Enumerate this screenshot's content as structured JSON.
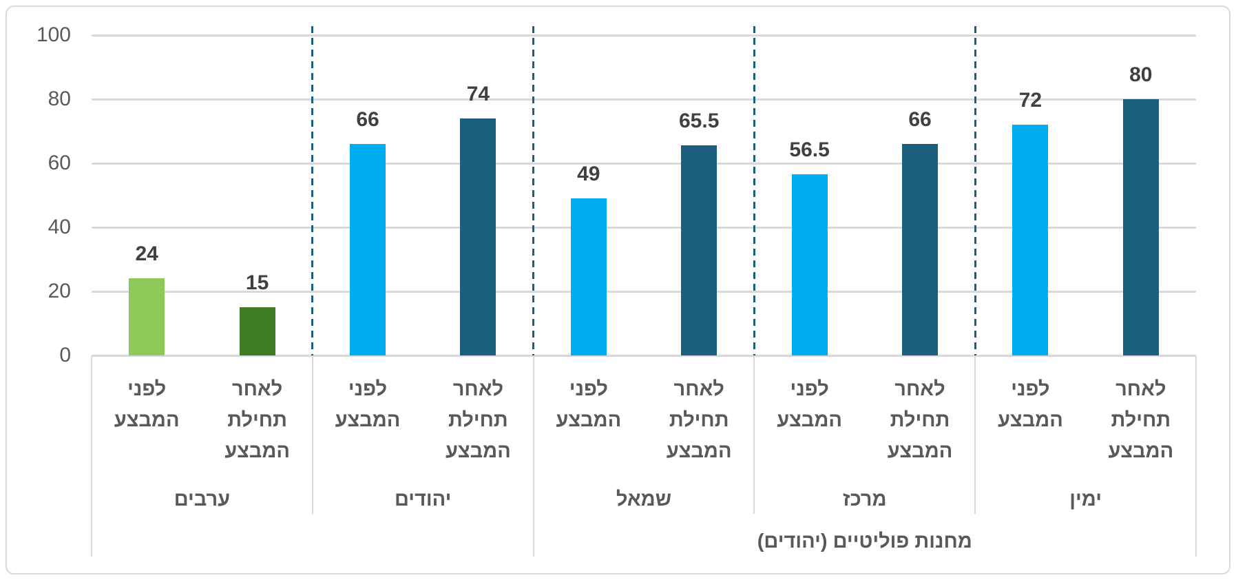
{
  "chart_data": {
    "type": "bar",
    "title": "",
    "xlabel": "",
    "ylabel": "",
    "ylim": [
      0,
      100
    ],
    "yticks": [
      0,
      20,
      40,
      60,
      80,
      100
    ],
    "ytick_labels": [
      "0",
      "20",
      "40",
      "60",
      "80",
      "100"
    ],
    "grid": true,
    "legend": "none",
    "group_order": "left-to-right",
    "groups": [
      {
        "group": "ערבים",
        "bars": [
          {
            "label": "לפני המבצע",
            "label_lines": [
              "לפני",
              "המבצע"
            ],
            "value": 24,
            "value_label": "24",
            "color": "#8DC956"
          },
          {
            "label": "לאחר תחילת המבצע",
            "label_lines": [
              "לאחר",
              "תחילת",
              "המבצע"
            ],
            "value": 15,
            "value_label": "15",
            "color": "#3E7D24"
          }
        ]
      },
      {
        "group": "יהודים",
        "bars": [
          {
            "label": "לפני המבצע",
            "label_lines": [
              "לפני",
              "המבצע"
            ],
            "value": 66,
            "value_label": "66",
            "color": "#00AEEF"
          },
          {
            "label": "לאחר תחילת המבצע",
            "label_lines": [
              "לאחר",
              "תחילת",
              "המבצע"
            ],
            "value": 74,
            "value_label": "74",
            "color": "#1B5E7D"
          }
        ]
      },
      {
        "group": "שמאל",
        "bars": [
          {
            "label": "לפני המבצע",
            "label_lines": [
              "לפני",
              "המבצע"
            ],
            "value": 49,
            "value_label": "49",
            "color": "#00AEEF"
          },
          {
            "label": "לאחר תחילת המבצע",
            "label_lines": [
              "לאחר",
              "תחילת",
              "המבצע"
            ],
            "value": 65.5,
            "value_label": "65.5",
            "color": "#1B5E7D"
          }
        ]
      },
      {
        "group": "מרכז",
        "bars": [
          {
            "label": "לפני המבצע",
            "label_lines": [
              "לפני",
              "המבצע"
            ],
            "value": 56.5,
            "value_label": "56.5",
            "color": "#00AEEF"
          },
          {
            "label": "לאחר תחילת המבצע",
            "label_lines": [
              "לאחר",
              "תחילת",
              "המבצע"
            ],
            "value": 66,
            "value_label": "66",
            "color": "#1B5E7D"
          }
        ]
      },
      {
        "group": "ימין",
        "bars": [
          {
            "label": "לפני המבצע",
            "label_lines": [
              "לפני",
              "המבצע"
            ],
            "value": 72,
            "value_label": "72",
            "color": "#00AEEF"
          },
          {
            "label": "לאחר תחילת המבצע",
            "label_lines": [
              "לאחר",
              "תחילת",
              "המבצע"
            ],
            "value": 80,
            "value_label": "80",
            "color": "#1B5E7D"
          }
        ]
      }
    ],
    "super_category": {
      "label": "מחנות פוליטיים (יהודים)",
      "span_start_group": 2,
      "span_end_group": 4
    },
    "separators": {
      "style": "dashed-vertical-between-groups",
      "count": 4
    }
  },
  "colors": {
    "bar_light_green": "#8DC956",
    "bar_dark_green": "#3E7D24",
    "bar_light_blue": "#00AEEF",
    "bar_dark_blue": "#1B5E7D",
    "dashed_separator": "#17607E",
    "gridline": "#D9D9D9",
    "category_divider": "#D9D9D9",
    "frame_border": "#D9D9D9",
    "axis_text": "#595959",
    "value_label_text": "#404040"
  }
}
